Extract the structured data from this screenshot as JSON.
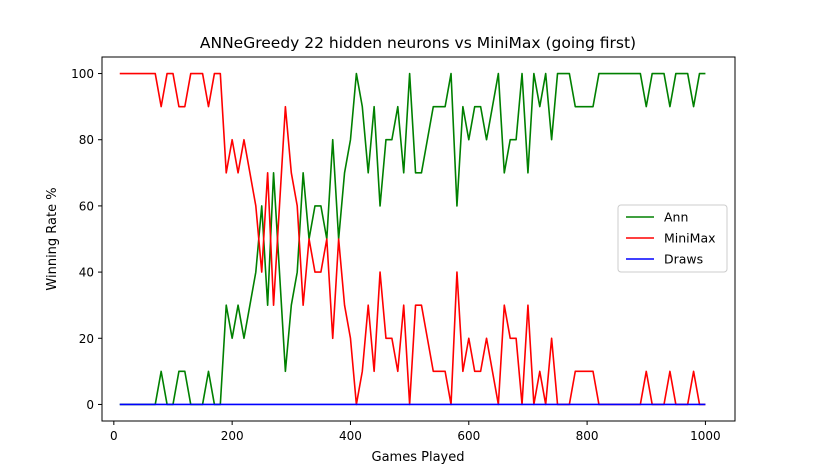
{
  "chart_data": {
    "type": "line",
    "title": "ANNeGreedy 22 hidden neurons vs MiniMax (going first)",
    "xlabel": "Games Played",
    "ylabel": "Winning Rate %",
    "xlim": [
      -20,
      1050
    ],
    "ylim": [
      -5,
      105
    ],
    "xticks": [
      0,
      200,
      400,
      600,
      800,
      1000
    ],
    "yticks": [
      0,
      20,
      40,
      60,
      80,
      100
    ],
    "grid": false,
    "legend": "center-right",
    "x": [
      10,
      20,
      30,
      40,
      50,
      60,
      70,
      80,
      90,
      100,
      110,
      120,
      130,
      140,
      150,
      160,
      170,
      180,
      190,
      200,
      210,
      220,
      230,
      240,
      250,
      260,
      270,
      280,
      290,
      300,
      310,
      320,
      330,
      340,
      350,
      360,
      370,
      380,
      390,
      400,
      410,
      420,
      430,
      440,
      450,
      460,
      470,
      480,
      490,
      500,
      510,
      520,
      530,
      540,
      550,
      560,
      570,
      580,
      590,
      600,
      610,
      620,
      630,
      640,
      650,
      660,
      670,
      680,
      690,
      700,
      710,
      720,
      730,
      740,
      750,
      760,
      770,
      780,
      790,
      800,
      810,
      820,
      830,
      840,
      850,
      860,
      870,
      880,
      890,
      900,
      910,
      920,
      930,
      940,
      950,
      960,
      970,
      980,
      990,
      1000
    ],
    "series": [
      {
        "name": "Ann",
        "color": "#008000",
        "values": [
          0,
          0,
          0,
          0,
          0,
          0,
          0,
          10,
          0,
          0,
          10,
          10,
          0,
          0,
          0,
          10,
          0,
          0,
          30,
          20,
          30,
          20,
          30,
          40,
          60,
          30,
          70,
          40,
          10,
          30,
          40,
          70,
          50,
          60,
          60,
          50,
          80,
          50,
          70,
          80,
          100,
          90,
          70,
          90,
          60,
          80,
          80,
          90,
          70,
          100,
          70,
          70,
          80,
          90,
          90,
          90,
          100,
          60,
          90,
          80,
          90,
          90,
          80,
          90,
          100,
          70,
          80,
          80,
          100,
          70,
          100,
          90,
          100,
          80,
          100,
          100,
          100,
          90,
          90,
          90,
          90,
          100,
          100,
          100,
          100,
          100,
          100,
          100,
          100,
          90,
          100,
          100,
          100,
          90,
          100,
          100,
          100,
          90,
          100,
          100
        ]
      },
      {
        "name": "MiniMax",
        "color": "#ff0000",
        "values": [
          100,
          100,
          100,
          100,
          100,
          100,
          100,
          90,
          100,
          100,
          90,
          90,
          100,
          100,
          100,
          90,
          100,
          100,
          70,
          80,
          70,
          80,
          70,
          60,
          40,
          70,
          30,
          60,
          90,
          70,
          60,
          30,
          50,
          40,
          40,
          50,
          20,
          50,
          30,
          20,
          0,
          10,
          30,
          10,
          40,
          20,
          20,
          10,
          30,
          0,
          30,
          30,
          20,
          10,
          10,
          10,
          0,
          40,
          10,
          20,
          10,
          10,
          20,
          10,
          0,
          30,
          20,
          20,
          0,
          30,
          0,
          10,
          0,
          20,
          0,
          0,
          0,
          10,
          10,
          10,
          10,
          0,
          0,
          0,
          0,
          0,
          0,
          0,
          0,
          10,
          0,
          0,
          0,
          10,
          0,
          0,
          0,
          10,
          0,
          0
        ]
      },
      {
        "name": "Draws",
        "color": "#0000ff",
        "values": [
          0,
          0,
          0,
          0,
          0,
          0,
          0,
          0,
          0,
          0,
          0,
          0,
          0,
          0,
          0,
          0,
          0,
          0,
          0,
          0,
          0,
          0,
          0,
          0,
          0,
          0,
          0,
          0,
          0,
          0,
          0,
          0,
          0,
          0,
          0,
          0,
          0,
          0,
          0,
          0,
          0,
          0,
          0,
          0,
          0,
          0,
          0,
          0,
          0,
          0,
          0,
          0,
          0,
          0,
          0,
          0,
          0,
          0,
          0,
          0,
          0,
          0,
          0,
          0,
          0,
          0,
          0,
          0,
          0,
          0,
          0,
          0,
          0,
          0,
          0,
          0,
          0,
          0,
          0,
          0,
          0,
          0,
          0,
          0,
          0,
          0,
          0,
          0,
          0,
          0,
          0,
          0,
          0,
          0,
          0,
          0,
          0,
          0,
          0,
          0
        ]
      }
    ]
  }
}
